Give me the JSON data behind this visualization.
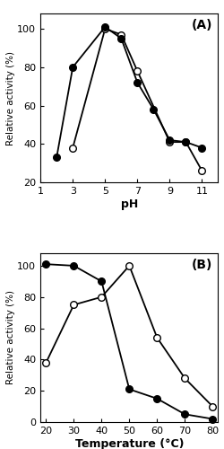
{
  "panel_A": {
    "open_x": [
      3,
      5,
      6,
      7,
      9,
      10,
      11
    ],
    "open_y": [
      38,
      100,
      97,
      78,
      41,
      41,
      26
    ],
    "filled_x": [
      2,
      3,
      5,
      6,
      7,
      8,
      9,
      10,
      11
    ],
    "filled_y": [
      33,
      80,
      101,
      95,
      72,
      58,
      42,
      41,
      38
    ],
    "xlabel": "pH",
    "ylabel": "Relative activity (%)",
    "xlim": [
      1,
      12
    ],
    "ylim": [
      20,
      108
    ],
    "xticks": [
      1,
      3,
      5,
      7,
      9,
      11
    ],
    "yticks": [
      20,
      40,
      60,
      80,
      100
    ],
    "label": "(A)"
  },
  "panel_B": {
    "open_x": [
      20,
      30,
      40,
      50,
      60,
      70,
      80
    ],
    "open_y": [
      38,
      75,
      80,
      100,
      54,
      28,
      10
    ],
    "filled_x": [
      20,
      30,
      40,
      50,
      60,
      70,
      80
    ],
    "filled_y": [
      101,
      100,
      90,
      21,
      15,
      5,
      2
    ],
    "xlabel": "Temperature (°C)",
    "ylabel": "Relative activity (%)",
    "xlim": [
      18,
      82
    ],
    "ylim": [
      0,
      108
    ],
    "xticks": [
      20,
      30,
      40,
      50,
      60,
      70,
      80
    ],
    "yticks": [
      0,
      20,
      40,
      60,
      80,
      100
    ],
    "label": "(B)"
  },
  "line_color": "#000000",
  "marker_size": 5.5,
  "line_width": 1.3,
  "bg_color": "#ffffff"
}
